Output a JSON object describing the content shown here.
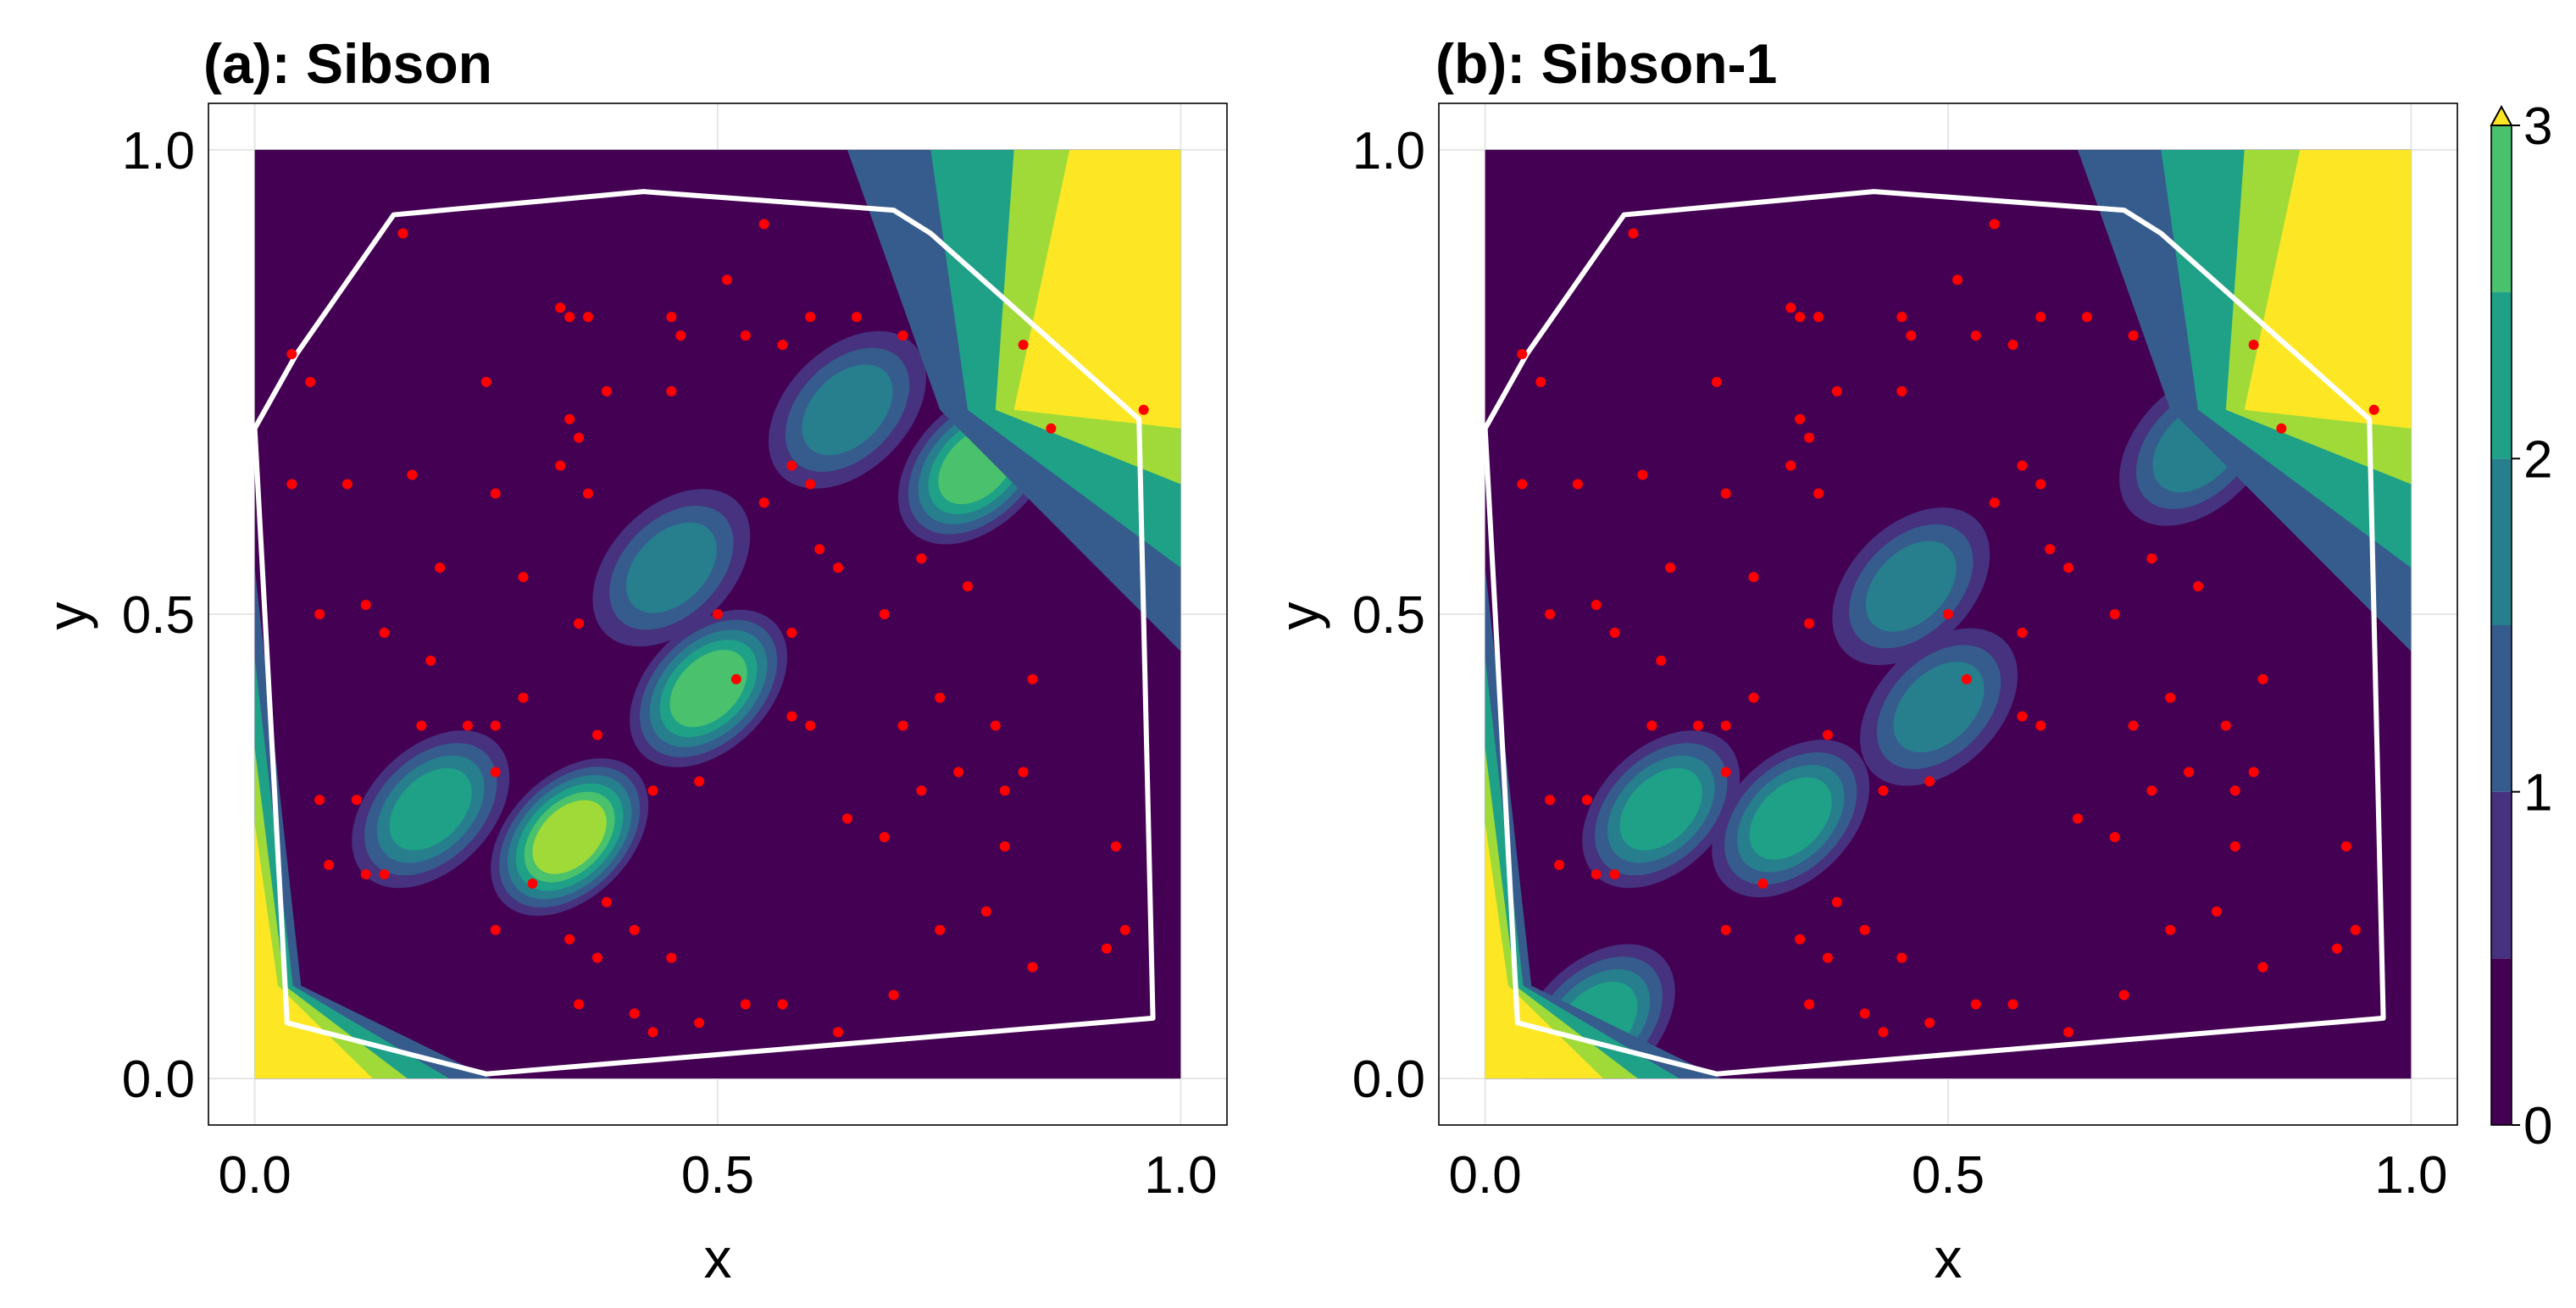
{
  "chart_data": [
    {
      "type": "contour",
      "title": "(a): Sibson",
      "xlabel": "x",
      "ylabel": "y",
      "xlim": [
        -0.05,
        1.05
      ],
      "ylim": [
        -0.05,
        1.05
      ],
      "xticks": [
        0.0,
        0.5,
        1.0
      ],
      "yticks": [
        0.0,
        0.5,
        1.0
      ],
      "xtick_labels": [
        "0.0",
        "0.5",
        "1.0"
      ],
      "ytick_labels": [
        "0.0",
        "0.5",
        "1.0"
      ],
      "grid": true,
      "contour_levels": [
        0,
        0.5,
        1,
        1.5,
        2,
        2.5,
        3
      ],
      "boundary_polygon": [
        [
          0.0,
          0.7
        ],
        [
          0.045,
          0.78
        ],
        [
          0.15,
          0.93
        ],
        [
          0.42,
          0.955
        ],
        [
          0.69,
          0.935
        ],
        [
          0.73,
          0.91
        ],
        [
          0.955,
          0.71
        ],
        [
          0.97,
          0.065
        ],
        [
          0.25,
          0.005
        ],
        [
          0.035,
          0.06
        ],
        [
          0.0,
          0.7
        ]
      ],
      "hot_regions": [
        {
          "x": 0.34,
          "y": 0.26,
          "peak": 2.9
        },
        {
          "x": 0.78,
          "y": 0.66,
          "peak": 2.3
        },
        {
          "x": 0.49,
          "y": 0.42,
          "peak": 2.3
        },
        {
          "x": 0.45,
          "y": 0.55,
          "peak": 1.7
        },
        {
          "x": 0.19,
          "y": 0.29,
          "peak": 2.0
        },
        {
          "x": 0.64,
          "y": 0.72,
          "peak": 1.4
        }
      ]
    },
    {
      "type": "contour",
      "title": "(b): Sibson-1",
      "xlabel": "x",
      "ylabel": "y",
      "xlim": [
        -0.05,
        1.05
      ],
      "ylim": [
        -0.05,
        1.05
      ],
      "xticks": [
        0.0,
        0.5,
        1.0
      ],
      "yticks": [
        0.0,
        0.5,
        1.0
      ],
      "xtick_labels": [
        "0.0",
        "0.5",
        "1.0"
      ],
      "ytick_labels": [
        "0.0",
        "0.5",
        "1.0"
      ],
      "grid": true,
      "contour_levels": [
        0,
        0.5,
        1,
        1.5,
        2,
        2.5,
        3
      ],
      "boundary_polygon": [
        [
          0.0,
          0.7
        ],
        [
          0.045,
          0.78
        ],
        [
          0.15,
          0.93
        ],
        [
          0.42,
          0.955
        ],
        [
          0.69,
          0.935
        ],
        [
          0.73,
          0.91
        ],
        [
          0.955,
          0.71
        ],
        [
          0.97,
          0.065
        ],
        [
          0.25,
          0.005
        ],
        [
          0.035,
          0.06
        ],
        [
          0.0,
          0.7
        ]
      ],
      "hot_regions": [
        {
          "x": 0.33,
          "y": 0.28,
          "peak": 2.2
        },
        {
          "x": 0.19,
          "y": 0.29,
          "peak": 1.9
        },
        {
          "x": 0.12,
          "y": 0.06,
          "peak": 2.0
        },
        {
          "x": 0.49,
          "y": 0.4,
          "peak": 1.6
        },
        {
          "x": 0.77,
          "y": 0.68,
          "peak": 1.3
        },
        {
          "x": 0.46,
          "y": 0.53,
          "peak": 1.3
        }
      ]
    }
  ],
  "colorbar": {
    "ticks": [
      0,
      1,
      2,
      3
    ],
    "tick_labels": [
      "0",
      "1",
      "2",
      "3"
    ],
    "extend": "max",
    "colors": [
      "#440154",
      "#46327e",
      "#365c8d",
      "#277f8e",
      "#1fa187",
      "#4ac16d",
      "#a0da39",
      "#fde725"
    ]
  },
  "points": [
    [
      0.16,
      0.91
    ],
    [
      0.55,
      0.92
    ],
    [
      0.04,
      0.78
    ],
    [
      0.06,
      0.75
    ],
    [
      0.25,
      0.75
    ],
    [
      0.1,
      0.64
    ],
    [
      0.17,
      0.65
    ],
    [
      0.33,
      0.83
    ],
    [
      0.34,
      0.82
    ],
    [
      0.36,
      0.82
    ],
    [
      0.45,
      0.82
    ],
    [
      0.46,
      0.8
    ],
    [
      0.51,
      0.86
    ],
    [
      0.53,
      0.8
    ],
    [
      0.57,
      0.79
    ],
    [
      0.6,
      0.82
    ],
    [
      0.65,
      0.82
    ],
    [
      0.7,
      0.8
    ],
    [
      0.38,
      0.74
    ],
    [
      0.45,
      0.74
    ],
    [
      0.34,
      0.71
    ],
    [
      0.35,
      0.69
    ],
    [
      0.33,
      0.66
    ],
    [
      0.36,
      0.63
    ],
    [
      0.26,
      0.63
    ],
    [
      0.58,
      0.66
    ],
    [
      0.6,
      0.64
    ],
    [
      0.55,
      0.62
    ],
    [
      0.63,
      0.55
    ],
    [
      0.61,
      0.57
    ],
    [
      0.72,
      0.56
    ],
    [
      0.77,
      0.53
    ],
    [
      0.86,
      0.7
    ],
    [
      0.83,
      0.79
    ],
    [
      0.2,
      0.55
    ],
    [
      0.29,
      0.54
    ],
    [
      0.35,
      0.49
    ],
    [
      0.07,
      0.5
    ],
    [
      0.12,
      0.51
    ],
    [
      0.14,
      0.48
    ],
    [
      0.19,
      0.45
    ],
    [
      0.18,
      0.38
    ],
    [
      0.23,
      0.38
    ],
    [
      0.26,
      0.33
    ],
    [
      0.29,
      0.41
    ],
    [
      0.26,
      0.38
    ],
    [
      0.07,
      0.3
    ],
    [
      0.11,
      0.3
    ],
    [
      0.12,
      0.22
    ],
    [
      0.14,
      0.22
    ],
    [
      0.37,
      0.37
    ],
    [
      0.43,
      0.31
    ],
    [
      0.48,
      0.32
    ],
    [
      0.6,
      0.38
    ],
    [
      0.7,
      0.38
    ],
    [
      0.74,
      0.41
    ],
    [
      0.8,
      0.38
    ],
    [
      0.76,
      0.33
    ],
    [
      0.81,
      0.31
    ],
    [
      0.84,
      0.43
    ],
    [
      0.64,
      0.28
    ],
    [
      0.68,
      0.26
    ],
    [
      0.72,
      0.31
    ],
    [
      0.5,
      0.5
    ],
    [
      0.52,
      0.43
    ],
    [
      0.58,
      0.39
    ],
    [
      0.26,
      0.16
    ],
    [
      0.3,
      0.21
    ],
    [
      0.34,
      0.15
    ],
    [
      0.37,
      0.13
    ],
    [
      0.38,
      0.19
    ],
    [
      0.41,
      0.16
    ],
    [
      0.45,
      0.13
    ],
    [
      0.35,
      0.08
    ],
    [
      0.41,
      0.07
    ],
    [
      0.43,
      0.05
    ],
    [
      0.48,
      0.06
    ],
    [
      0.53,
      0.08
    ],
    [
      0.57,
      0.08
    ],
    [
      0.63,
      0.05
    ],
    [
      0.69,
      0.09
    ],
    [
      0.74,
      0.16
    ],
    [
      0.79,
      0.18
    ],
    [
      0.81,
      0.25
    ],
    [
      0.83,
      0.33
    ],
    [
      0.84,
      0.12
    ],
    [
      0.92,
      0.14
    ],
    [
      0.93,
      0.25
    ],
    [
      0.94,
      0.16
    ],
    [
      0.58,
      0.48
    ],
    [
      0.68,
      0.5
    ],
    [
      0.04,
      0.64
    ],
    [
      0.08,
      0.23
    ],
    [
      0.96,
      0.72
    ]
  ]
}
